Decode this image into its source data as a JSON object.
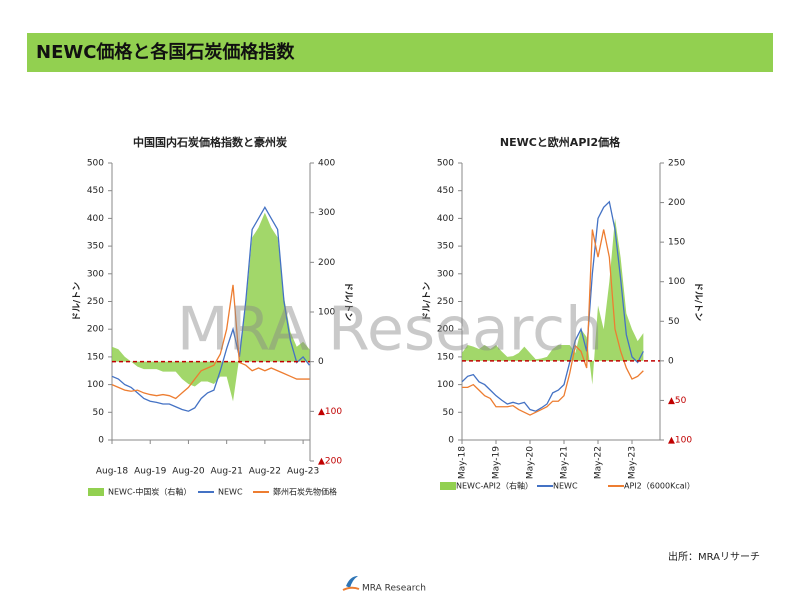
{
  "header": {
    "title": "NEWC価格と各国石炭価格指数"
  },
  "watermark": "MRA Research",
  "source": "出所：MRAリサーチ",
  "footer": {
    "logo_text": "MRA Research"
  },
  "chart_data": [
    {
      "type": "line",
      "title": "中国国内石炭価格指数と豪州炭",
      "ylabel": "ドル/トン",
      "y2label": "ドル/トン",
      "categories": [
        "Aug-18",
        null,
        null,
        null,
        null,
        null,
        "Aug-19",
        null,
        null,
        null,
        null,
        null,
        "Aug-20",
        null,
        null,
        null,
        null,
        null,
        "Aug-21",
        null,
        null,
        null,
        null,
        null,
        "Aug-22",
        null,
        null,
        null,
        null,
        null,
        "Aug-23",
        null
      ],
      "ylim": [
        0,
        500
      ],
      "yticks": [
        0,
        50,
        100,
        150,
        200,
        250,
        300,
        350,
        400,
        450,
        500
      ],
      "y2lim": [
        -200,
        400
      ],
      "y2ticks": [
        {
          "value": -200,
          "label": "▲200"
        },
        {
          "value": -100,
          "label": "▲100"
        },
        0,
        100,
        200,
        300,
        400
      ],
      "ref_line": {
        "axis": "y2",
        "value": 0,
        "color": "#c00000"
      },
      "series": [
        {
          "name": "NEWC-中国炭（右軸）",
          "type": "area",
          "axis": "y2",
          "color": "#92d050",
          "values": [
            30,
            25,
            10,
            0,
            -10,
            -15,
            -15,
            -15,
            -20,
            -20,
            -20,
            -35,
            -45,
            -50,
            -40,
            -40,
            -45,
            -30,
            -30,
            -80,
            10,
            110,
            250,
            270,
            300,
            270,
            250,
            130,
            60,
            30,
            40,
            25
          ]
        },
        {
          "name": "NEWC",
          "type": "line",
          "color": "#4472c4",
          "values": [
            115,
            110,
            100,
            95,
            85,
            75,
            70,
            68,
            65,
            65,
            60,
            55,
            52,
            58,
            75,
            85,
            90,
            125,
            165,
            200,
            150,
            250,
            380,
            400,
            420,
            400,
            380,
            250,
            180,
            140,
            150,
            135
          ]
        },
        {
          "name": "鄭州石炭先物価格",
          "type": "line",
          "color": "#ed7d31",
          "values": [
            100,
            95,
            90,
            88,
            90,
            85,
            82,
            80,
            82,
            80,
            75,
            85,
            95,
            110,
            125,
            130,
            135,
            155,
            200,
            280,
            140,
            135,
            125,
            130,
            125,
            130,
            125,
            120,
            115,
            110,
            110,
            110
          ]
        }
      ]
    },
    {
      "type": "line",
      "title": "NEWCと欧州API2価格",
      "ylabel": "ドル/トン",
      "y2label": "ドル/トン",
      "categories": [
        "May-18",
        null,
        null,
        null,
        null,
        null,
        "May-19",
        null,
        null,
        null,
        null,
        null,
        "May-20",
        null,
        null,
        null,
        null,
        null,
        "May-21",
        null,
        null,
        null,
        null,
        null,
        "May-22",
        null,
        null,
        null,
        null,
        null,
        "May-23",
        null,
        null
      ],
      "ylim": [
        0,
        500
      ],
      "yticks": [
        0,
        50,
        100,
        150,
        200,
        250,
        300,
        350,
        400,
        450,
        500
      ],
      "y2lim": [
        -100,
        250
      ],
      "y2ticks": [
        {
          "value": -100,
          "label": "▲100"
        },
        {
          "value": -50,
          "label": "▲50"
        },
        0,
        50,
        100,
        150,
        200,
        250
      ],
      "ref_line": {
        "axis": "y2",
        "value": 0,
        "color": "#c00000"
      },
      "series": [
        {
          "name": "NEWC-API2（右軸）",
          "type": "area",
          "axis": "y2",
          "color": "#92d050",
          "values": [
            10,
            20,
            18,
            15,
            20,
            15,
            20,
            12,
            5,
            6,
            10,
            18,
            10,
            2,
            3,
            5,
            15,
            20,
            20,
            20,
            10,
            40,
            30,
            -30,
            70,
            40,
            100,
            180,
            130,
            60,
            40,
            25,
            35
          ]
        },
        {
          "name": "NEWC",
          "type": "line",
          "color": "#4472c4",
          "values": [
            105,
            115,
            118,
            105,
            100,
            90,
            80,
            72,
            65,
            68,
            65,
            68,
            55,
            52,
            58,
            65,
            85,
            90,
            100,
            140,
            180,
            200,
            160,
            300,
            400,
            420,
            430,
            380,
            290,
            190,
            150,
            140,
            160
          ]
        },
        {
          "name": "API2（6000Kcal）",
          "type": "line",
          "color": "#ed7d31",
          "values": [
            95,
            95,
            100,
            90,
            80,
            75,
            60,
            60,
            60,
            62,
            55,
            50,
            45,
            50,
            55,
            60,
            70,
            70,
            80,
            120,
            170,
            160,
            130,
            380,
            330,
            380,
            330,
            200,
            160,
            130,
            110,
            115,
            125
          ]
        }
      ]
    }
  ]
}
